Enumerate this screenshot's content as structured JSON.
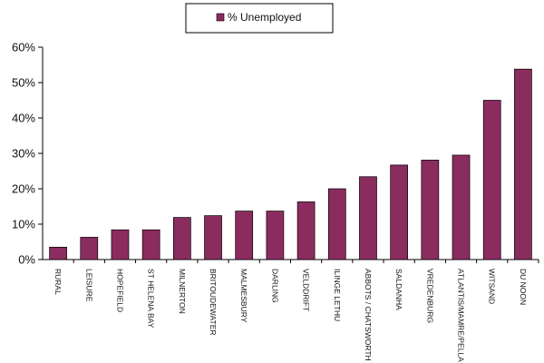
{
  "chart_data": {
    "type": "bar",
    "title": "",
    "xlabel": "",
    "ylabel": "",
    "categories": [
      "RURAL",
      "LEISURE",
      "HOPEFIELD",
      "ST HELENA BAY",
      "MILNERTON",
      "BRITOUDEWATER",
      "MALMESBURY",
      "DARLING",
      "VELDDRIFT",
      "ILINGE LETHU",
      "ABBOTS / CHATSWORTH",
      "SALDANHA",
      "VREDENBURG",
      "ATLANTIS/MAMRE/PELLA",
      "WITSAND",
      "DU NOON"
    ],
    "series": [
      {
        "name": "% Unemployed",
        "color": "#8B2C5F",
        "values": [
          3.5,
          6.3,
          8.4,
          8.4,
          11.9,
          12.4,
          13.7,
          13.7,
          16.3,
          20.0,
          23.4,
          26.7,
          28.1,
          29.5,
          45.0,
          53.8
        ]
      }
    ],
    "ylim": [
      0,
      60
    ],
    "yticks": [
      "0%",
      "10%",
      "20%",
      "30%",
      "40%",
      "50%",
      "60%"
    ],
    "grid": false,
    "legend": "top-center"
  }
}
